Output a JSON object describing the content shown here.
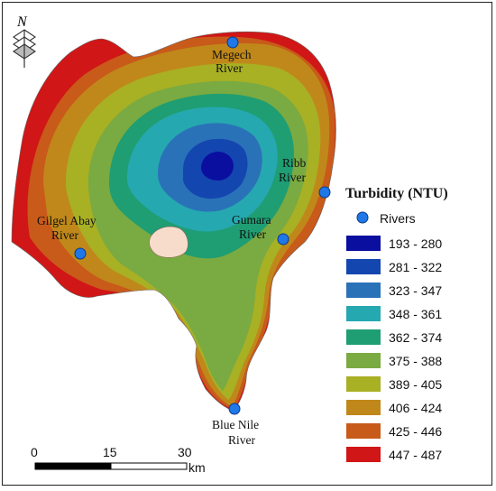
{
  "north_arrow": {
    "label": "N"
  },
  "rivers": [
    {
      "name_line1": "Megech",
      "name_line2": "River"
    },
    {
      "name_line1": "Ribb",
      "name_line2": "River"
    },
    {
      "name_line1": "Gumara",
      "name_line2": "River"
    },
    {
      "name_line1": "Gilgel Abay",
      "name_line2": "River"
    },
    {
      "name_line1": "Blue Nile",
      "name_line2": "River"
    }
  ],
  "legend": {
    "title": "Turbidity (NTU)",
    "rivers_label": "Rivers",
    "river_symbol_color": "#1f77e8",
    "classes": [
      {
        "label": "193 - 280",
        "color": "#0a0fa0"
      },
      {
        "label": "281 - 322",
        "color": "#1446b0"
      },
      {
        "label": "323 - 347",
        "color": "#2a72b8"
      },
      {
        "label": "348 - 361",
        "color": "#26a8b0"
      },
      {
        "label": "362 - 374",
        "color": "#1e9e72"
      },
      {
        "label": "375 - 388",
        "color": "#7aaa42"
      },
      {
        "label": "389 - 405",
        "color": "#a8b024"
      },
      {
        "label": "406 - 424",
        "color": "#c0881a"
      },
      {
        "label": "425 - 446",
        "color": "#c85a1a"
      },
      {
        "label": "447 - 487",
        "color": "#d01616"
      }
    ]
  },
  "scale_bar": {
    "tick_0": "0",
    "tick_1": "15",
    "tick_2": "30",
    "unit": "km"
  },
  "island_color": "#f7dccb"
}
